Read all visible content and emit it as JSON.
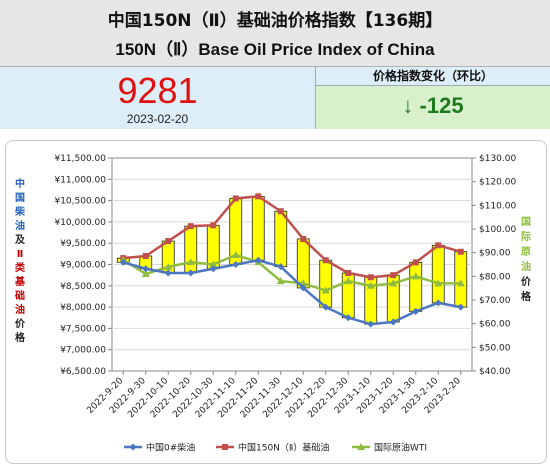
{
  "header": {
    "title_cn": "中国150N（Ⅱ）基础油价格指数【136期】",
    "title_en": "150N（Ⅱ）Base Oil Price Index of China"
  },
  "index": {
    "value": "9281",
    "date": "2023-02-20"
  },
  "change": {
    "label": "价格指数变化（环比）",
    "value": "↓ -125"
  },
  "colors": {
    "diesel": "#4a76c2",
    "base_oil": "#c0504d",
    "wti": "#8fbc3f",
    "bar": "#ffff00"
  },
  "chart_data": {
    "type": "line",
    "categories": [
      "2022-9-20",
      "2022-9-30",
      "2022-10-10",
      "2022-10-20",
      "2022-10-30",
      "2022-11-10",
      "2022-11-20",
      "2022-11-30",
      "2022-12-10",
      "2022-12-20",
      "2022-12-30",
      "2023-1-10",
      "2023-1-20",
      "2023-1-30",
      "2023-2-10",
      "2023-2-20"
    ],
    "left_axis": {
      "label_chars": [
        "中",
        "国",
        "柴",
        "油",
        "及",
        "Ⅱ",
        "类",
        "基",
        "础",
        "油",
        "价",
        "格"
      ],
      "min": 6500,
      "max": 11500,
      "step": 500,
      "ticks": [
        "¥6,500.00",
        "¥7,000.00",
        "¥7,500.00",
        "¥8,000.00",
        "¥8,500.00",
        "¥9,000.00",
        "¥9,500.00",
        "¥10,000.00",
        "¥10,500.00",
        "¥11,000.00",
        "¥11,500.00"
      ]
    },
    "right_axis": {
      "label_chars": [
        "国",
        "际",
        "原",
        "油",
        "价",
        "格"
      ],
      "min": 40,
      "max": 130,
      "step": 10,
      "ticks": [
        "$40.00",
        "$50.00",
        "$60.00",
        "$70.00",
        "$80.00",
        "$90.00",
        "$100.00",
        "$110.00",
        "$120.00",
        "$130.00"
      ]
    },
    "series": [
      {
        "name": "中国0#柴油",
        "axis": "left",
        "values": [
          9050,
          8900,
          8800,
          8800,
          8900,
          9000,
          9100,
          8950,
          8450,
          8000,
          7750,
          7600,
          7650,
          7900,
          8100,
          8000
        ]
      },
      {
        "name": "中国150N（Ⅱ）基础油",
        "axis": "left",
        "values": [
          9150,
          9200,
          9550,
          9900,
          9920,
          10550,
          10600,
          10250,
          9600,
          9100,
          8800,
          8700,
          8750,
          9050,
          9450,
          9300
        ]
      },
      {
        "name": "国际原油WTI",
        "axis": "right",
        "values": [
          87,
          81,
          84,
          86,
          85,
          89,
          86,
          78,
          77,
          74,
          78,
          76,
          77,
          80,
          77,
          77
        ]
      }
    ],
    "legend_position": "bottom"
  }
}
